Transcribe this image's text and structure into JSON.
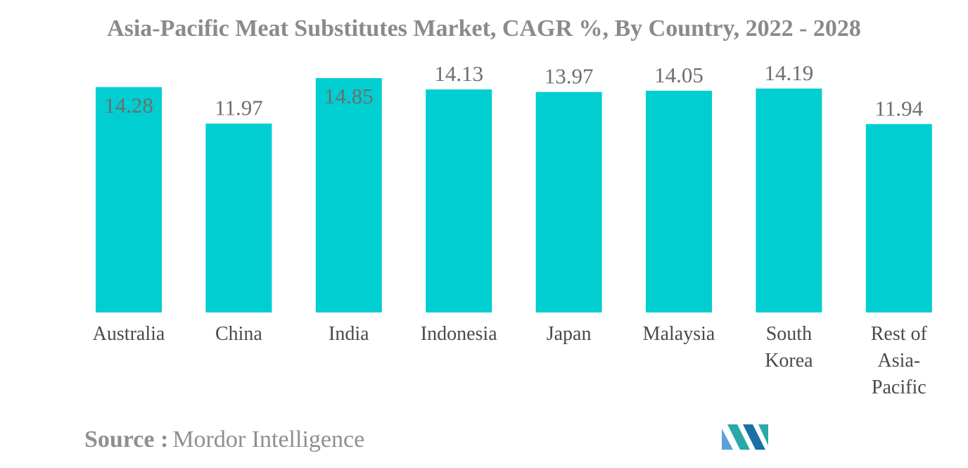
{
  "chart_data": {
    "type": "bar",
    "title": "Asia-Pacific Meat Substitutes Market, CAGR %, By Country, 2022 - 2028",
    "categories": [
      "Australia",
      "China",
      "India",
      "Indonesia",
      "Japan",
      "Malaysia",
      "South Korea",
      "Rest of Asia-Pacific"
    ],
    "category_lines": [
      [
        "Australia"
      ],
      [
        "China"
      ],
      [
        "India"
      ],
      [
        "Indonesia"
      ],
      [
        "Japan"
      ],
      [
        "Malaysia"
      ],
      [
        "South",
        "Korea"
      ],
      [
        "Rest of",
        "Asia-",
        "Pacific"
      ]
    ],
    "values": [
      14.28,
      11.97,
      14.85,
      14.13,
      13.97,
      14.05,
      14.19,
      11.94
    ],
    "value_labels": [
      "14.28",
      "11.97",
      "14.85",
      "14.13",
      "13.97",
      "14.05",
      "14.19",
      "11.94"
    ],
    "xlabel": "",
    "ylabel": "",
    "ylim": [
      0,
      14.85
    ],
    "grid": false,
    "legend": "none",
    "bar_color": "#00ced1"
  },
  "source": {
    "label": "Source :",
    "text": "Mordor Intelligence"
  },
  "logo": {
    "icon": "mordor-intelligence-logo-icon",
    "colors": [
      "#5aa3d8",
      "#2aa9a8",
      "#1d6fa8"
    ]
  }
}
